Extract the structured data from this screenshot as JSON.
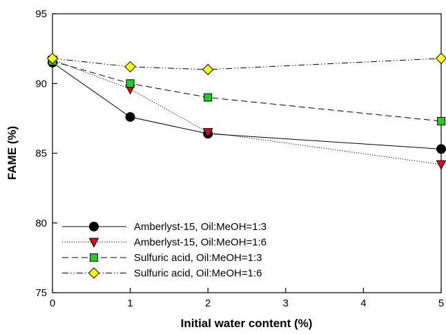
{
  "chart_data": {
    "type": "line",
    "xlabel": "Initial water content (%)",
    "ylabel": "FAME (%)",
    "xlim": [
      0,
      5
    ],
    "ylim": [
      75,
      95
    ],
    "xticks": [
      0,
      1,
      2,
      3,
      4,
      5
    ],
    "yticks": [
      75,
      80,
      85,
      90,
      95
    ],
    "grid": false,
    "legend_position": "bottom-left",
    "series": [
      {
        "name": "Amberlyst-15, Oil:MeOH=1:3",
        "x": [
          0,
          1,
          2,
          5
        ],
        "values": [
          91.5,
          87.6,
          86.4,
          85.3
        ],
        "marker": "circle",
        "line_style": "solid",
        "color": "#000000"
      },
      {
        "name": "Amberlyst-15, Oil:MeOH=1:6",
        "x": [
          0,
          1,
          2,
          5
        ],
        "values": [
          91.7,
          89.6,
          86.5,
          84.2
        ],
        "marker": "triangle-down",
        "line_style": "dotted",
        "color": "#e3001b"
      },
      {
        "name": "Sulfuric acid, Oil:MeOH=1:3",
        "x": [
          0,
          1,
          2,
          5
        ],
        "values": [
          91.6,
          90.0,
          89.0,
          87.3
        ],
        "marker": "square",
        "line_style": "dashed",
        "color": "#22cc22"
      },
      {
        "name": "Sulfuric acid, Oil:MeOH=1:6",
        "x": [
          0,
          1,
          2,
          5
        ],
        "values": [
          91.8,
          91.2,
          91.0,
          91.8
        ],
        "marker": "diamond",
        "line_style": "dash-dot-dot",
        "color": "#ffff00"
      }
    ]
  }
}
